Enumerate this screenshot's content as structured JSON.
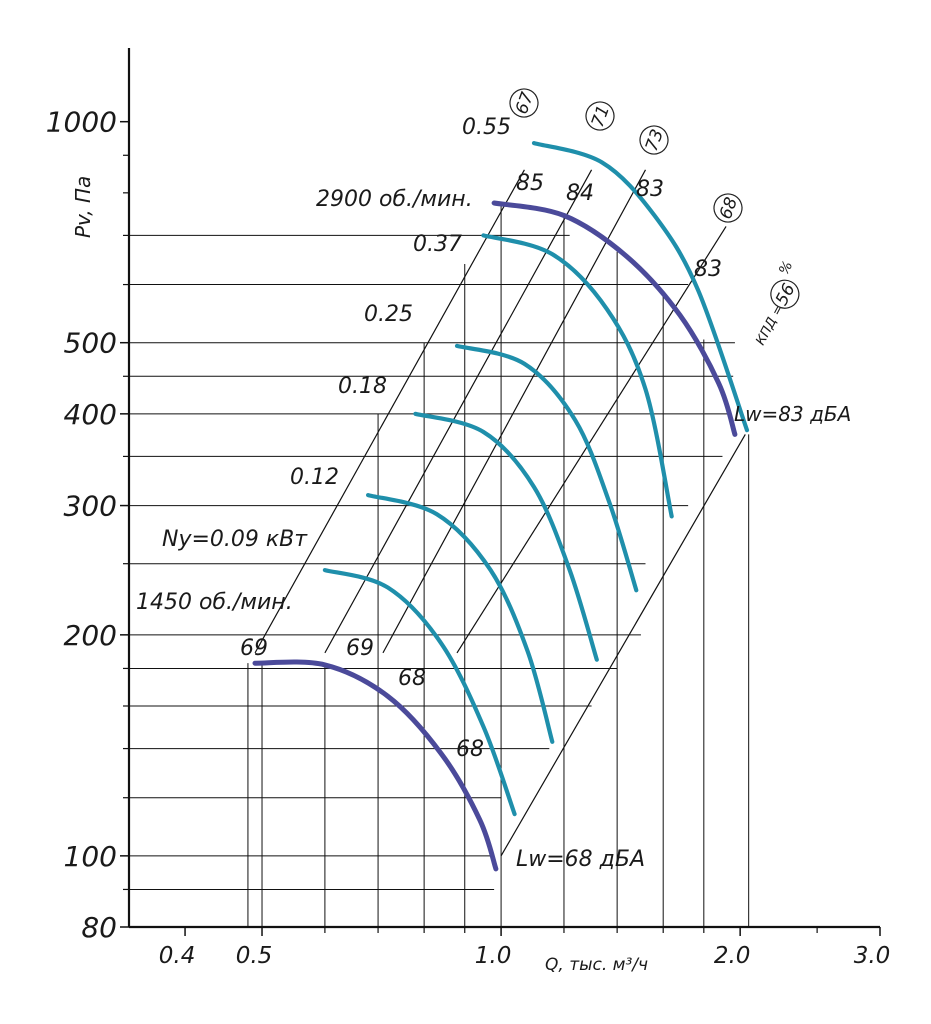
{
  "chart_data": {
    "type": "line",
    "x_scale": "log",
    "y_scale": "log",
    "xlim": [
      0.34,
      3.0
    ],
    "ylim": [
      80,
      1260
    ],
    "xlabel": "Q, тыс. м³/ч",
    "ylabel": "Pv, Па",
    "x_ticks": [
      {
        "value": 0.4,
        "label": "0.4"
      },
      {
        "value": 0.5,
        "label": "0.5"
      },
      {
        "value": 1.0,
        "label": "1.0"
      },
      {
        "value": 2.0,
        "label": "2.0"
      },
      {
        "value": 3.0,
        "label": "3.0"
      }
    ],
    "x_minor_ticks": [
      0.6,
      0.7,
      0.8,
      0.9,
      1.2,
      1.4,
      1.6,
      1.8,
      2.5
    ],
    "y_ticks": [
      {
        "value": 80,
        "label": "80"
      },
      {
        "value": 100,
        "label": "100"
      },
      {
        "value": 200,
        "label": "200"
      },
      {
        "value": 300,
        "label": "300"
      },
      {
        "value": 400,
        "label": "400"
      },
      {
        "value": 500,
        "label": "500"
      },
      {
        "value": 1000,
        "label": "1000"
      }
    ],
    "y_minor_ticks": [
      90,
      120,
      140,
      160,
      180,
      250,
      350,
      450,
      600,
      700,
      800,
      900
    ],
    "guides": {
      "horizontal": [
        {
          "y": 90,
          "x_end": 0.98
        },
        {
          "y": 100,
          "x_end": 0.98
        },
        {
          "y": 120,
          "x_end": 1.0
        },
        {
          "y": 140,
          "x_end": 1.15
        },
        {
          "y": 160,
          "x_end": 1.3
        },
        {
          "y": 180,
          "x_end": 1.4
        },
        {
          "y": 200,
          "x_end": 1.5
        },
        {
          "y": 250,
          "x_end": 1.52
        },
        {
          "y": 300,
          "x_end": 1.72
        },
        {
          "y": 350,
          "x_end": 1.9
        },
        {
          "y": 400,
          "x_end": 1.95
        },
        {
          "y": 450,
          "x_end": 1.96
        },
        {
          "y": 500,
          "x_end": 1.97
        },
        {
          "y": 600,
          "x_end": 1.72
        },
        {
          "y": 700,
          "x_end": 1.22
        }
      ],
      "vertical": [
        {
          "x": 0.48,
          "y_top": 183
        },
        {
          "x": 0.5,
          "y_top": 183
        },
        {
          "x": 0.6,
          "y_top": 183
        },
        {
          "x": 0.7,
          "y_top": 400
        },
        {
          "x": 0.8,
          "y_top": 500
        },
        {
          "x": 0.9,
          "y_top": 640
        },
        {
          "x": 1.0,
          "y_top": 775
        },
        {
          "x": 1.2,
          "y_top": 745
        },
        {
          "x": 1.4,
          "y_top": 665
        },
        {
          "x": 1.6,
          "y_top": 580
        },
        {
          "x": 1.8,
          "y_top": 505
        },
        {
          "x": 2.05,
          "y_top": 375
        }
      ]
    },
    "series": [
      {
        "name": "1450 об./мин.",
        "color": "#4b4a9a",
        "role": "speed",
        "x": [
          0.49,
          0.6,
          0.72,
          0.84,
          0.94,
          0.985
        ],
        "y": [
          183,
          182,
          165,
          138,
          112,
          96
        ]
      },
      {
        "name": "2900 об./мин.",
        "color": "#4b4a9a",
        "role": "speed",
        "x": [
          0.98,
          1.2,
          1.44,
          1.68,
          1.88,
          1.97
        ],
        "y": [
          775,
          745,
          655,
          545,
          440,
          375
        ]
      },
      {
        "name": "Ny=0.09 кВт",
        "color": "#1f8fab",
        "role": "power",
        "x": [
          0.6,
          0.72,
          0.84,
          0.95,
          1.04
        ],
        "y": [
          245,
          232,
          195,
          150,
          114
        ]
      },
      {
        "name": "0.12",
        "color": "#1f8fab",
        "role": "power",
        "x": [
          0.68,
          0.83,
          0.97,
          1.08,
          1.16
        ],
        "y": [
          310,
          292,
          245,
          190,
          143
        ]
      },
      {
        "name": "0.18",
        "color": "#1f8fab",
        "role": "power",
        "x": [
          0.78,
          0.95,
          1.1,
          1.22,
          1.32
        ],
        "y": [
          400,
          378,
          318,
          245,
          185
        ]
      },
      {
        "name": "0.25",
        "color": "#1f8fab",
        "role": "power",
        "x": [
          0.88,
          1.07,
          1.24,
          1.37,
          1.48
        ],
        "y": [
          495,
          468,
          392,
          302,
          230
        ]
      },
      {
        "name": "0.37",
        "color": "#1f8fab",
        "role": "power",
        "x": [
          0.95,
          1.16,
          1.36,
          1.52,
          1.64
        ],
        "y": [
          700,
          660,
          555,
          432,
          290
        ]
      },
      {
        "name": "0.55",
        "color": "#1f8fab",
        "role": "power",
        "x": [
          1.1,
          1.34,
          1.56,
          1.77,
          2.04
        ],
        "y": [
          935,
          880,
          745,
          590,
          380
        ]
      }
    ],
    "efficiency_lines": [
      {
        "label": "67",
        "x": [
          0.49,
          1.07
        ],
        "y": [
          189,
          860
        ]
      },
      {
        "label": "71",
        "x": [
          0.6,
          1.3
        ],
        "y": [
          189,
          860
        ]
      },
      {
        "label": "73",
        "x": [
          0.71,
          1.52
        ],
        "y": [
          189,
          860
        ]
      },
      {
        "label": "68",
        "x": [
          0.88,
          1.92
        ],
        "y": [
          189,
          720
        ]
      },
      {
        "label": "56",
        "x": [
          1.0,
          2.03
        ],
        "y": [
          100,
          375
        ]
      }
    ],
    "annotations": {
      "speed_high": "2900 об./мин.",
      "speed_low": "1450 об./мин.",
      "efficiency_prefix": "КПД =",
      "efficiency_unit": "%",
      "efficiency_values": [
        "67",
        "71",
        "73",
        "68",
        "56"
      ],
      "sound_high": "Lw=83 дБА",
      "sound_low": "Lw=68 дБА",
      "sound_levels_high": [
        "85",
        "84",
        "83",
        "83"
      ],
      "sound_levels_low": [
        "69",
        "69",
        "68",
        "68"
      ]
    }
  }
}
